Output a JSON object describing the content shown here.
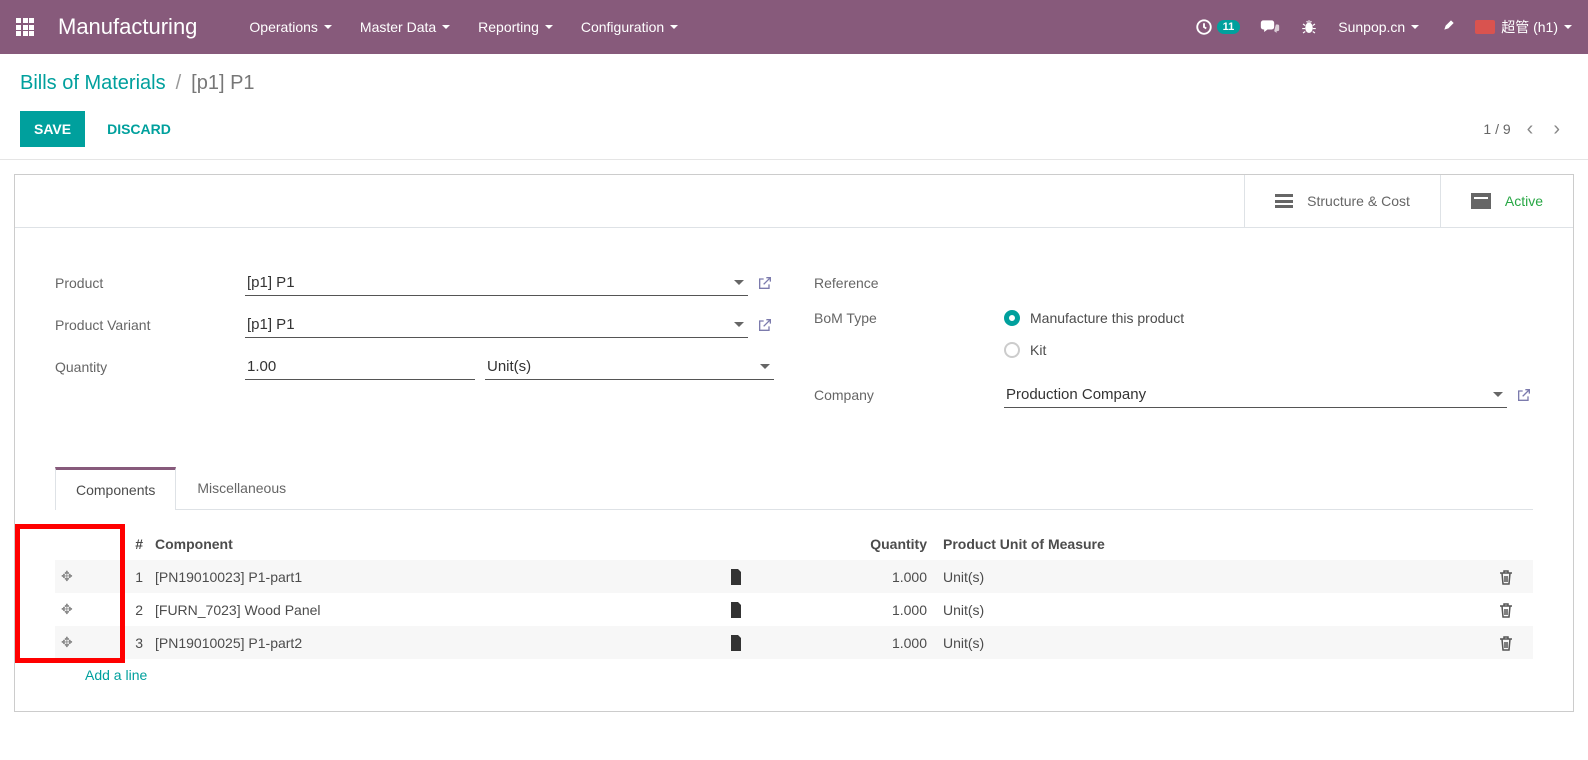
{
  "nav": {
    "brand": "Manufacturing",
    "menus": [
      "Operations",
      "Master Data",
      "Reporting",
      "Configuration"
    ],
    "clock_badge": "11",
    "user": "超管 (h1)",
    "company": "Sunpop.cn"
  },
  "breadcrumb": {
    "root": "Bills of Materials",
    "current": "[p1] P1"
  },
  "buttons": {
    "save": "SAVE",
    "discard": "DISCARD"
  },
  "pager": {
    "text": "1 / 9"
  },
  "stat": {
    "structure": "Structure & Cost",
    "active": "Active"
  },
  "form": {
    "product_label": "Product",
    "product_value": "[p1] P1",
    "variant_label": "Product Variant",
    "variant_value": "[p1] P1",
    "qty_label": "Quantity",
    "qty_value": "1.00",
    "qty_unit": "Unit(s)",
    "ref_label": "Reference",
    "bom_type_label": "BoM Type",
    "bom_type_opt1": "Manufacture this product",
    "bom_type_opt2": "Kit",
    "company_label": "Company",
    "company_value": "Production Company"
  },
  "tabs": {
    "components": "Components",
    "misc": "Miscellaneous"
  },
  "table": {
    "headers": {
      "seq": "#",
      "component": "Component",
      "qty": "Quantity",
      "uom": "Product Unit of Measure"
    },
    "rows": [
      {
        "seq": "1",
        "component": "[PN19010023] P1-part1",
        "qty": "1.000",
        "uom": "Unit(s)"
      },
      {
        "seq": "2",
        "component": "[FURN_7023] Wood Panel",
        "qty": "1.000",
        "uom": "Unit(s)"
      },
      {
        "seq": "3",
        "component": "[PN19010025] P1-part2",
        "qty": "1.000",
        "uom": "Unit(s)"
      }
    ],
    "add_line": "Add a line"
  },
  "colors": {
    "primary": "#875a7b",
    "teal": "#00a09d",
    "green": "#28a745",
    "highlight": "#ff0000"
  }
}
